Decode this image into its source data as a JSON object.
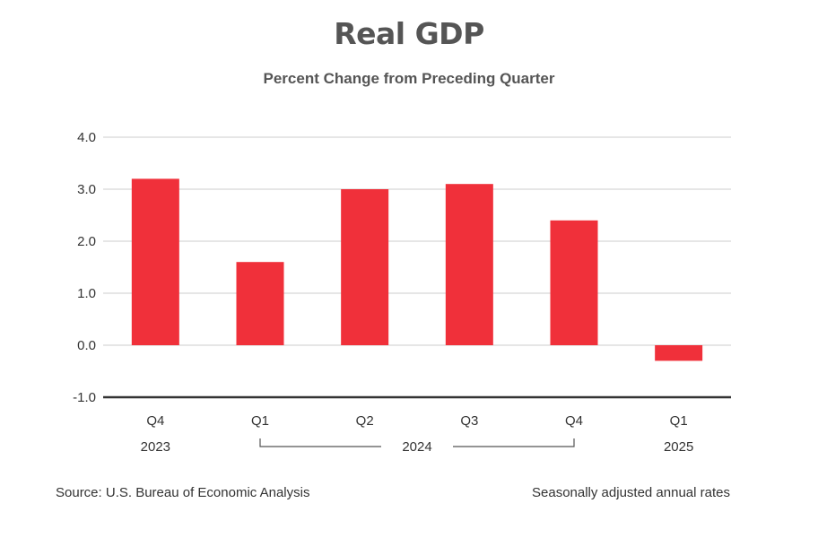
{
  "chart_data": {
    "type": "bar",
    "title": "Real GDP",
    "subtitle": "Percent Change from Preceding Quarter",
    "categories": [
      "Q4",
      "Q1",
      "Q2",
      "Q3",
      "Q4",
      "Q1"
    ],
    "years": [
      {
        "label": "2023",
        "span": [
          0,
          0
        ]
      },
      {
        "label": "2024",
        "span": [
          1,
          4
        ]
      },
      {
        "label": "2025",
        "span": [
          5,
          5
        ]
      }
    ],
    "values": [
      3.2,
      1.6,
      3.0,
      3.1,
      2.4,
      -0.3
    ],
    "ylim": [
      -1.0,
      4.0
    ],
    "yticks": [
      "4.0",
      "3.0",
      "2.0",
      "1.0",
      "0.0",
      "-1.0"
    ],
    "ytick_values": [
      4,
      3,
      2,
      1,
      0,
      -1
    ],
    "xlabel": "",
    "ylabel": "",
    "bar_color": "#f0303a",
    "grid": true,
    "source": "Source: U.S. Bureau of Economic Analysis",
    "note": "Seasonally adjusted annual rates"
  }
}
